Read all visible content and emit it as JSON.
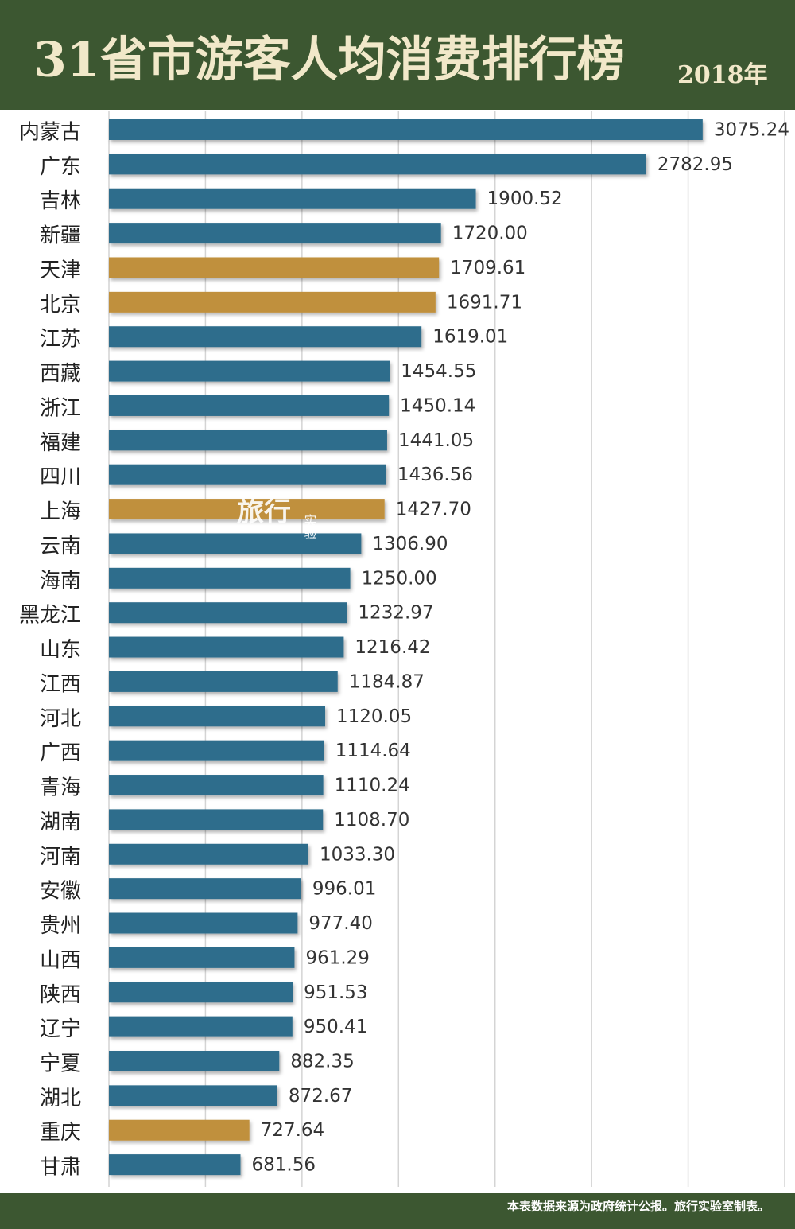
{
  "chart_data": {
    "type": "bar",
    "orientation": "horizontal",
    "title": "31省市游客人均消费排行榜",
    "subtitle": "2018年",
    "source": "本表数据来源为政府统计公报。旅行实验室制表。",
    "watermark": [
      "旅行",
      "实验"
    ],
    "categories": [
      "内蒙古",
      "广东",
      "吉林",
      "新疆",
      "天津",
      "北京",
      "江苏",
      "西藏",
      "浙江",
      "福建",
      "四川",
      "上海",
      "云南",
      "海南",
      "黑龙江",
      "山东",
      "江西",
      "河北",
      "广西",
      "青海",
      "湖南",
      "河南",
      "安徽",
      "贵州",
      "山西",
      "陕西",
      "辽宁",
      "宁夏",
      "湖北",
      "重庆",
      "甘肃"
    ],
    "values": [
      3075.24,
      2782.95,
      1900.52,
      1720,
      1709.61,
      1691.71,
      1619.01,
      1454.55,
      1450.14,
      1441.05,
      1436.56,
      1427.7,
      1306.9,
      1250,
      1232.97,
      1216.42,
      1184.87,
      1120.05,
      1114.64,
      1110.24,
      1108.7,
      1033.3,
      996.01,
      977.4,
      961.29,
      951.53,
      950.41,
      882.35,
      872.67,
      727.64,
      681.56
    ],
    "value_labels": [
      "3075.24",
      "2782.95",
      "1900.52",
      "1720.00",
      "1709.61",
      "1691.71",
      "1619.01",
      "1454.55",
      "1450.14",
      "1441.05",
      "1436.56",
      "1427.70",
      "1306.90",
      "1250.00",
      "1232.97",
      "1216.42",
      "1184.87",
      "1120.05",
      "1114.64",
      "1110.24",
      "1108.70",
      "1033.30",
      "996.01",
      "977.40",
      "961.29",
      "951.53",
      "950.41",
      "882.35",
      "872.67",
      "727.64",
      "681.56"
    ],
    "colors": [
      "#2f6d8c",
      "#2f6d8c",
      "#2f6d8c",
      "#2f6d8c",
      "#c0903d",
      "#c0903d",
      "#2f6d8c",
      "#2f6d8c",
      "#2f6d8c",
      "#2f6d8c",
      "#2f6d8c",
      "#c0903d",
      "#2f6d8c",
      "#2f6d8c",
      "#2f6d8c",
      "#2f6d8c",
      "#2f6d8c",
      "#2f6d8c",
      "#2f6d8c",
      "#2f6d8c",
      "#2f6d8c",
      "#2f6d8c",
      "#2f6d8c",
      "#2f6d8c",
      "#2f6d8c",
      "#2f6d8c",
      "#2f6d8c",
      "#2f6d8c",
      "#2f6d8c",
      "#c0903d",
      "#2f6d8c"
    ],
    "xlim": [
      0,
      3500
    ],
    "xticks": [
      0,
      500,
      1000,
      1500,
      2000,
      2500,
      3000,
      3500
    ],
    "grid": true
  }
}
